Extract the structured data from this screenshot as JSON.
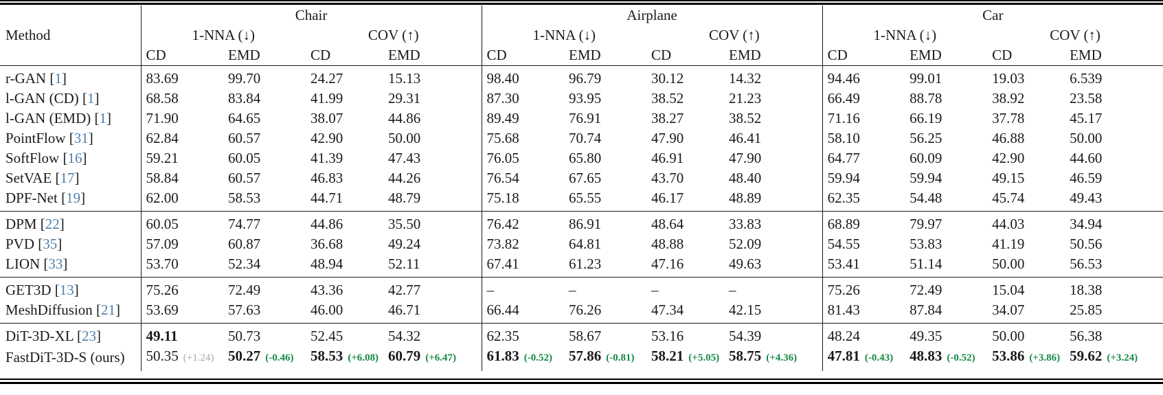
{
  "colors": {
    "citation_blue": "#4c7fb0",
    "delta_green": "#158a44",
    "delta_gray": "#a6a6a6"
  },
  "table": {
    "method_label": "Method",
    "groups": [
      {
        "label": "Chair",
        "nna": "1-NNA (↓)",
        "cov": "COV (↑)",
        "sub": [
          "CD",
          "EMD",
          "CD",
          "EMD"
        ]
      },
      {
        "label": "Airplane",
        "nna": "1-NNA (↓)",
        "cov": "COV (↑)",
        "sub": [
          "CD",
          "EMD",
          "CD",
          "EMD"
        ]
      },
      {
        "label": "Car",
        "nna": "1-NNA (↓)",
        "cov": "COV (↑)",
        "sub": [
          "CD",
          "EMD",
          "CD",
          "EMD"
        ]
      }
    ],
    "row_groups": [
      {
        "rows": [
          {
            "method": "r-GAN",
            "cite": "1",
            "cells": [
              "83.69",
              "99.70",
              "24.27",
              "15.13",
              "98.40",
              "96.79",
              "30.12",
              "14.32",
              "94.46",
              "99.01",
              "19.03",
              "6.539"
            ]
          },
          {
            "method": "l-GAN (CD)",
            "cite": "1",
            "cells": [
              "68.58",
              "83.84",
              "41.99",
              "29.31",
              "87.30",
              "93.95",
              "38.52",
              "21.23",
              "66.49",
              "88.78",
              "38.92",
              "23.58"
            ]
          },
          {
            "method": "l-GAN (EMD)",
            "cite": "1",
            "cells": [
              "71.90",
              "64.65",
              "38.07",
              "44.86",
              "89.49",
              "76.91",
              "38.27",
              "38.52",
              "71.16",
              "66.19",
              "37.78",
              "45.17"
            ]
          },
          {
            "method": "PointFlow",
            "cite": "31",
            "cells": [
              "62.84",
              "60.57",
              "42.90",
              "50.00",
              "75.68",
              "70.74",
              "47.90",
              "46.41",
              "58.10",
              "56.25",
              "46.88",
              "50.00"
            ]
          },
          {
            "method": "SoftFlow",
            "cite": "16",
            "cells": [
              "59.21",
              "60.05",
              "41.39",
              "47.43",
              "76.05",
              "65.80",
              "46.91",
              "47.90",
              "64.77",
              "60.09",
              "42.90",
              "44.60"
            ]
          },
          {
            "method": "SetVAE",
            "cite": "17",
            "cells": [
              "58.84",
              "60.57",
              "46.83",
              "44.26",
              "76.54",
              "67.65",
              "43.70",
              "48.40",
              "59.94",
              "59.94",
              "49.15",
              "46.59"
            ]
          },
          {
            "method": "DPF-Net",
            "cite": "19",
            "cells": [
              "62.00",
              "58.53",
              "44.71",
              "48.79",
              "75.18",
              "65.55",
              "46.17",
              "48.89",
              "62.35",
              "54.48",
              "45.74",
              "49.43"
            ]
          }
        ]
      },
      {
        "rows": [
          {
            "method": "DPM",
            "cite": "22",
            "cells": [
              "60.05",
              "74.77",
              "44.86",
              "35.50",
              "76.42",
              "86.91",
              "48.64",
              "33.83",
              "68.89",
              "79.97",
              "44.03",
              "34.94"
            ]
          },
          {
            "method": "PVD",
            "cite": "35",
            "cells": [
              "57.09",
              "60.87",
              "36.68",
              "49.24",
              "73.82",
              "64.81",
              "48.88",
              "52.09",
              "54.55",
              "53.83",
              "41.19",
              "50.56"
            ]
          },
          {
            "method": "LION",
            "cite": "33",
            "cells": [
              "53.70",
              "52.34",
              "48.94",
              "52.11",
              "67.41",
              "61.23",
              "47.16",
              "49.63",
              "53.41",
              "51.14",
              "50.00",
              "56.53"
            ]
          }
        ]
      },
      {
        "rows": [
          {
            "method": "GET3D",
            "cite": "13",
            "cells": [
              "75.26",
              "72.49",
              "43.36",
              "42.77",
              "–",
              "–",
              "–",
              "–",
              "75.26",
              "72.49",
              "15.04",
              "18.38"
            ]
          },
          {
            "method": "MeshDiffusion",
            "cite": "21",
            "cells": [
              "53.69",
              "57.63",
              "46.00",
              "46.71",
              "66.44",
              "76.26",
              "47.34",
              "42.15",
              "81.43",
              "87.84",
              "34.07",
              "25.85"
            ]
          }
        ]
      },
      {
        "rows": [
          {
            "method": "DiT-3D-XL",
            "cite": "23",
            "cells": [
              {
                "v": "49.11",
                "b": true
              },
              "50.73",
              "52.45",
              "54.32",
              "62.35",
              "58.67",
              "53.16",
              "54.39",
              "48.24",
              "49.35",
              "50.00",
              "56.38"
            ]
          },
          {
            "method": "FastDiT-3D-S (ours)",
            "cite": null,
            "cells": [
              {
                "v": "50.35",
                "d": "(+1.24)",
                "dc": "gray"
              },
              {
                "v": "50.27",
                "b": true,
                "d": "(-0.46)",
                "dc": "green"
              },
              {
                "v": "58.53",
                "b": true,
                "d": "(+6.08)",
                "dc": "green"
              },
              {
                "v": "60.79",
                "b": true,
                "d": "(+6.47)",
                "dc": "green"
              },
              {
                "v": "61.83",
                "b": true,
                "d": "(-0.52)",
                "dc": "green"
              },
              {
                "v": "57.86",
                "b": true,
                "d": "(-0.81)",
                "dc": "green"
              },
              {
                "v": "58.21",
                "b": true,
                "d": "(+5.05)",
                "dc": "green"
              },
              {
                "v": "58.75",
                "b": true,
                "d": "(+4.36)",
                "dc": "green"
              },
              {
                "v": "47.81",
                "b": true,
                "d": "(-0.43)",
                "dc": "green"
              },
              {
                "v": "48.83",
                "b": true,
                "d": "(-0.52)",
                "dc": "green"
              },
              {
                "v": "53.86",
                "b": true,
                "d": "(+3.86)",
                "dc": "green"
              },
              {
                "v": "59.62",
                "b": true,
                "d": "(+3.24)",
                "dc": "green"
              }
            ]
          }
        ]
      }
    ]
  }
}
